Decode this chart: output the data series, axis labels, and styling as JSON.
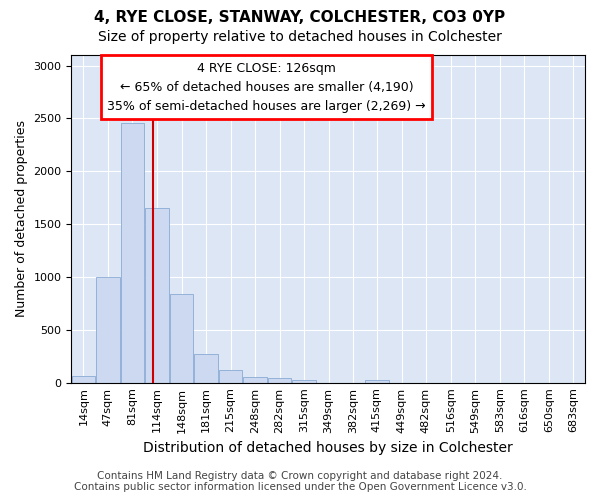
{
  "title": "4, RYE CLOSE, STANWAY, COLCHESTER, CO3 0YP",
  "subtitle": "Size of property relative to detached houses in Colchester",
  "xlabel": "Distribution of detached houses by size in Colchester",
  "ylabel": "Number of detached properties",
  "footer_line1": "Contains HM Land Registry data © Crown copyright and database right 2024.",
  "footer_line2": "Contains public sector information licensed under the Open Government Licence v3.0.",
  "annotation_line1": "4 RYE CLOSE: 126sqm",
  "annotation_line2": "← 65% of detached houses are smaller (4,190)",
  "annotation_line3": "35% of semi-detached houses are larger (2,269) →",
  "bar_color": "#ccd9f0",
  "bar_edge_color": "#8aaad4",
  "marker_line_color": "#cc0000",
  "marker_value": 126,
  "categories": [
    "14sqm",
    "47sqm",
    "81sqm",
    "114sqm",
    "148sqm",
    "181sqm",
    "215sqm",
    "248sqm",
    "282sqm",
    "315sqm",
    "349sqm",
    "382sqm",
    "415sqm",
    "449sqm",
    "482sqm",
    "516sqm",
    "549sqm",
    "583sqm",
    "616sqm",
    "650sqm",
    "683sqm"
  ],
  "bin_edges": [
    14,
    47,
    81,
    114,
    148,
    181,
    215,
    248,
    282,
    315,
    349,
    382,
    415,
    449,
    482,
    516,
    549,
    583,
    616,
    650,
    683
  ],
  "bin_width": 33,
  "values": [
    60,
    1000,
    2460,
    1650,
    840,
    270,
    120,
    55,
    40,
    30,
    0,
    0,
    30,
    0,
    0,
    0,
    0,
    0,
    0,
    0,
    0
  ],
  "ylim": [
    0,
    3100
  ],
  "yticks": [
    0,
    500,
    1000,
    1500,
    2000,
    2500,
    3000
  ],
  "title_fontsize": 11,
  "subtitle_fontsize": 10,
  "xlabel_fontsize": 10,
  "ylabel_fontsize": 9,
  "tick_fontsize": 8,
  "annotation_fontsize": 9,
  "footer_fontsize": 7.5,
  "plot_bg_color": "#dce6f5"
}
